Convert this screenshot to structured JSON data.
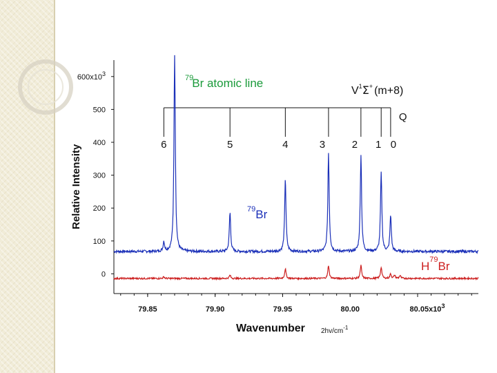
{
  "chart_data": {
    "type": "line",
    "xlabel": "Wavenumber",
    "xunit": "2hv/cm",
    "xunit_sup": "-1",
    "ylabel": "Relative Intensity",
    "x_ticks": [
      {
        "value": 79.85,
        "label": "79.85"
      },
      {
        "value": 79.9,
        "label": "79.90"
      },
      {
        "value": 79.95,
        "label": "79.95"
      },
      {
        "value": 80.0,
        "label": "80.00"
      },
      {
        "value": 80.05,
        "label": "80.05x10",
        "sup": "3"
      }
    ],
    "y_ticks": [
      {
        "value": 0,
        "label": "0"
      },
      {
        "value": 100,
        "label": "100"
      },
      {
        "value": 200,
        "label": "200"
      },
      {
        "value": 300,
        "label": "300"
      },
      {
        "value": 400,
        "label": "400"
      },
      {
        "value": 500,
        "label": "500"
      },
      {
        "value": 600,
        "label": "600x10",
        "sup": "3"
      }
    ],
    "xlim": [
      79.825,
      80.095
    ],
    "ylim": [
      -60,
      650
    ],
    "series": [
      {
        "color": "#1a2fb8",
        "baseline": 68,
        "width": 0.0006,
        "peaks": [
          [
            79.862,
            30
          ],
          [
            79.87,
            600
          ],
          [
            79.911,
            120
          ],
          [
            79.952,
            225
          ],
          [
            79.984,
            300
          ],
          [
            80.008,
            295
          ],
          [
            80.023,
            240
          ],
          [
            80.03,
            110
          ]
        ]
      },
      {
        "color": "#cc1f1f",
        "baseline": -14,
        "width": 0.0006,
        "peaks": [
          [
            79.862,
            5
          ],
          [
            79.911,
            10
          ],
          [
            79.952,
            30
          ],
          [
            79.984,
            40
          ],
          [
            80.008,
            40
          ],
          [
            80.023,
            35
          ],
          [
            80.03,
            14
          ],
          [
            80.033,
            10
          ],
          [
            80.037,
            9
          ]
        ]
      }
    ],
    "q_branch": {
      "label": "Q",
      "bar_y": 505,
      "lines": [
        {
          "label": "6",
          "x": 79.862
        },
        {
          "label": "5",
          "x": 79.911
        },
        {
          "label": "4",
          "x": 79.952
        },
        {
          "label": "3",
          "x": 79.984
        },
        {
          "label": "2",
          "x": 80.008
        },
        {
          "label": "1",
          "x": 80.023
        },
        {
          "label": "0",
          "x": 80.03
        }
      ]
    },
    "annotations": {
      "atomic_mass": "79",
      "atomic_text": "Br  atomic line",
      "atomic_color": "#1a9a3a",
      "br_mass": "79",
      "br_text": "Br",
      "br_color": "#1a2fb8",
      "hbr_h": "H",
      "hbr_mass": "79",
      "hbr_br": "Br",
      "hbr_color": "#cc1f1f",
      "state_v": "V",
      "state_sup1": "1",
      "state_sigma": "Σ",
      "state_sup2": "+",
      "state_rest": "(m+8)"
    }
  }
}
